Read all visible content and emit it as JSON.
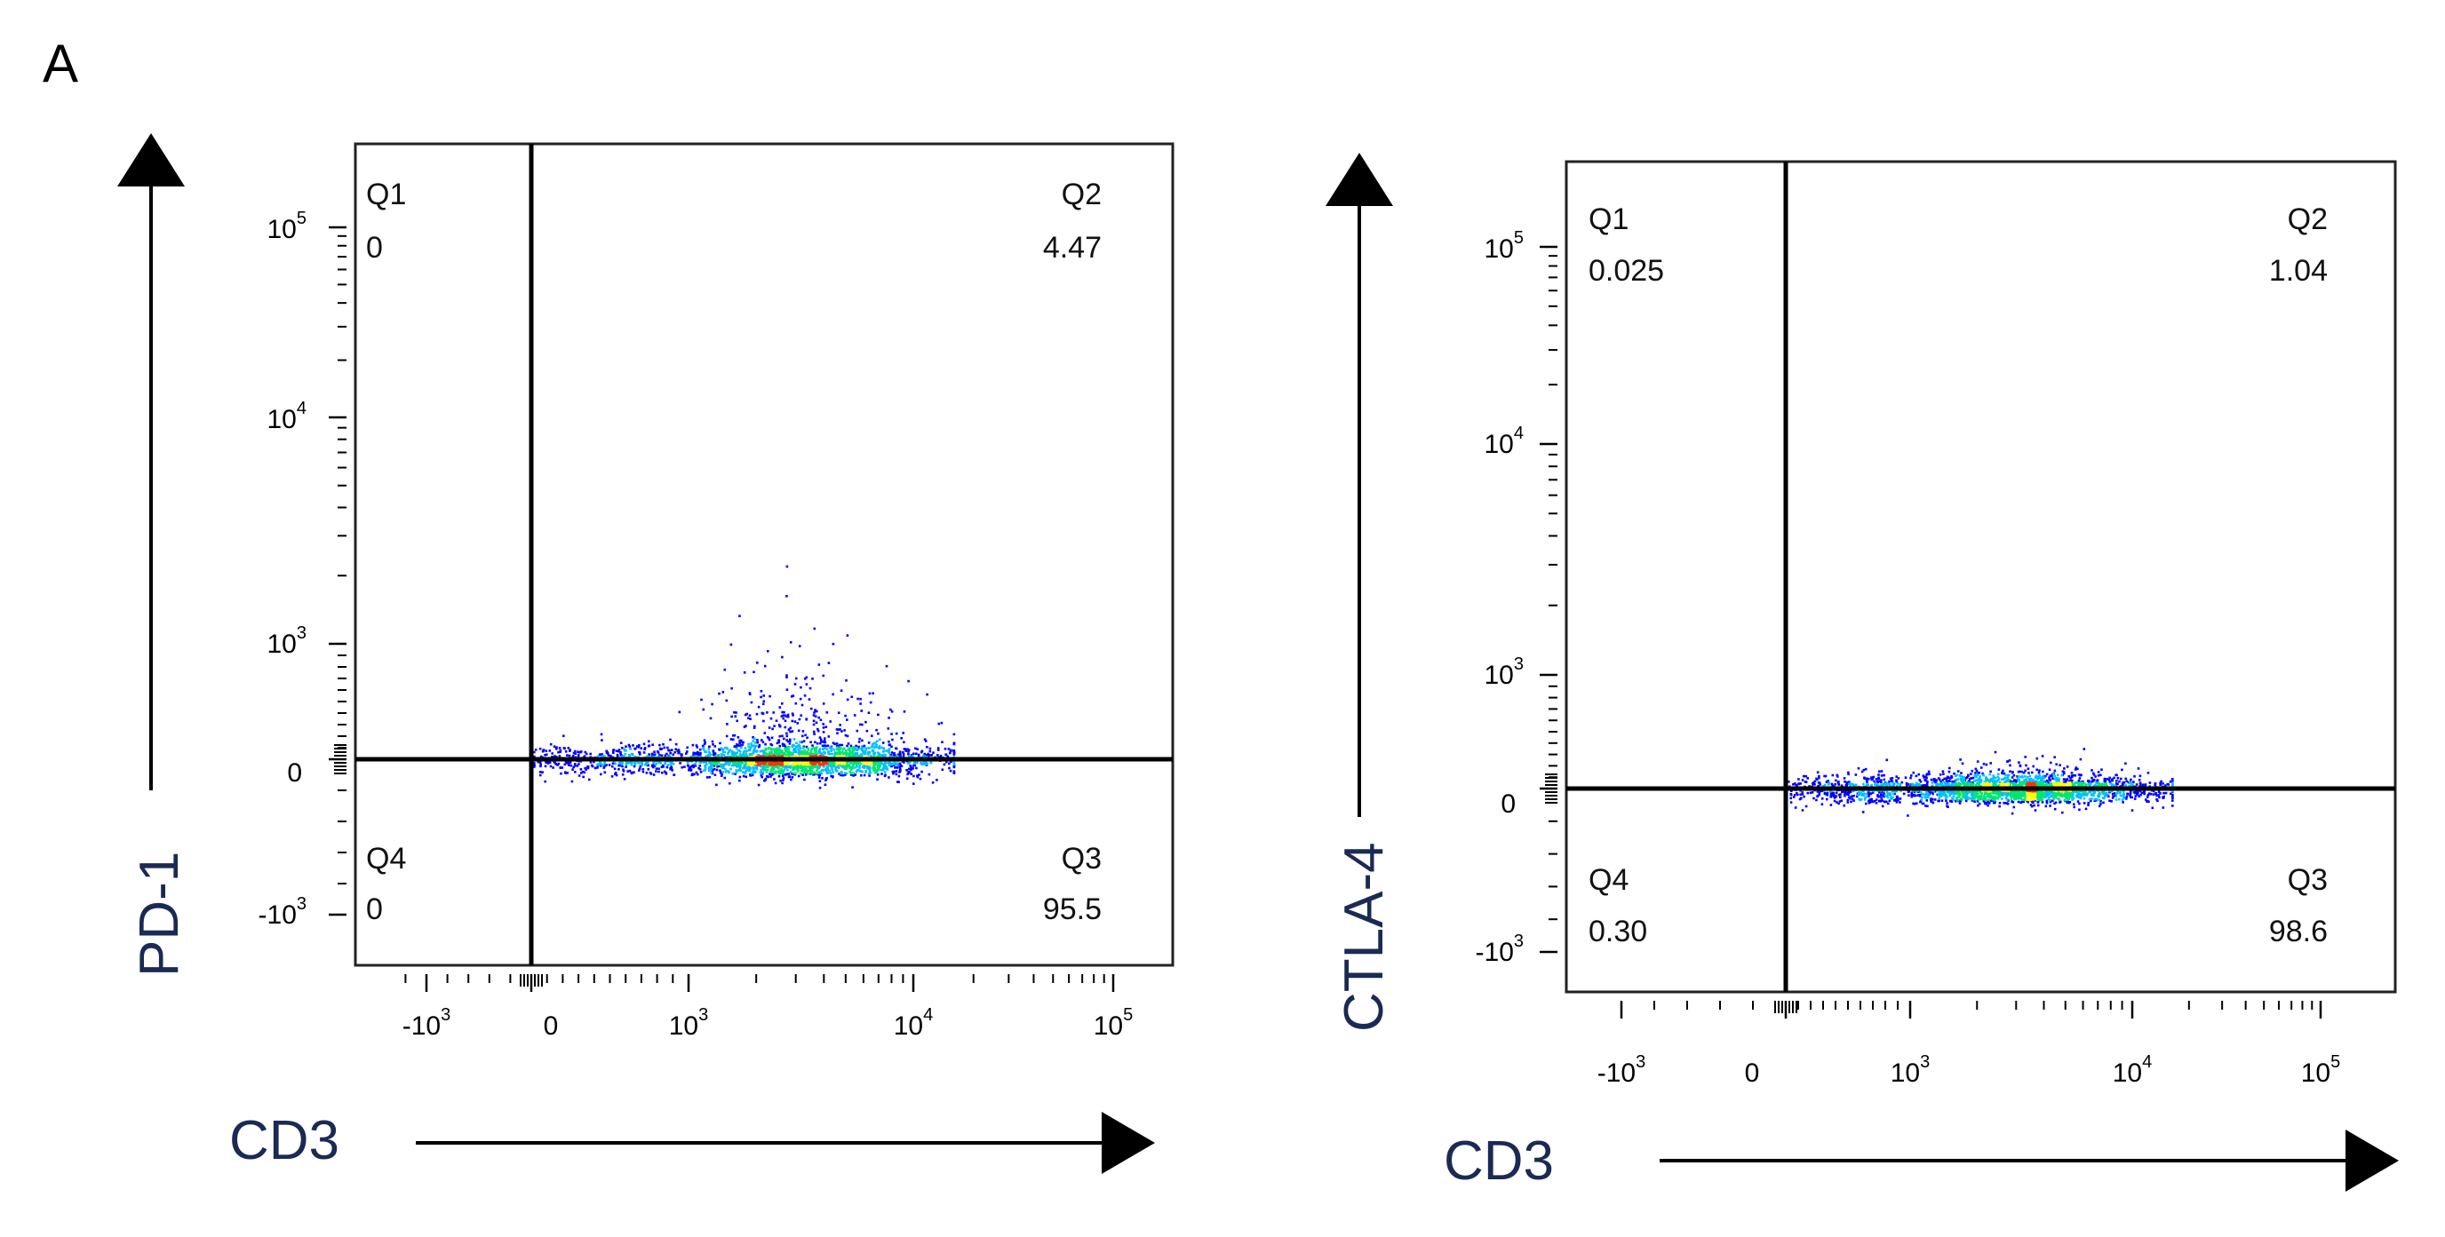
{
  "panel_letter": "A",
  "chart_data": [
    {
      "type": "scatter",
      "subtype": "flow-cytometry-density-dot-plot",
      "xlabel": "CD3",
      "ylabel": "PD-1",
      "x_scale": "biexponential",
      "y_scale": "biexponential",
      "x_ticks": [
        {
          "base": "-10",
          "exp": "3"
        },
        {
          "base": "0",
          "exp": ""
        },
        {
          "base": "10",
          "exp": "3"
        },
        {
          "base": "10",
          "exp": "4"
        },
        {
          "base": "10",
          "exp": "5"
        }
      ],
      "y_ticks": [
        {
          "base": "10",
          "exp": "5"
        },
        {
          "base": "10",
          "exp": "4"
        },
        {
          "base": "10",
          "exp": "3"
        },
        {
          "base": "0",
          "exp": ""
        },
        {
          "base": "-10",
          "exp": "3"
        }
      ],
      "quadrants": [
        {
          "name": "Q1",
          "value": "0"
        },
        {
          "name": "Q2",
          "value": "4.47"
        },
        {
          "name": "Q3",
          "value": "95.5"
        },
        {
          "name": "Q4",
          "value": "0"
        }
      ],
      "gate_x": 0,
      "gate_y": 0,
      "population": {
        "x_center": 3000,
        "y_center": 0,
        "x_range": [
          -200,
          15000
        ]
      }
    },
    {
      "type": "scatter",
      "subtype": "flow-cytometry-density-dot-plot",
      "xlabel": "CD3",
      "ylabel": "CTLA-4",
      "x_scale": "biexponential",
      "y_scale": "biexponential",
      "x_ticks": [
        {
          "base": "-10",
          "exp": "3"
        },
        {
          "base": "0",
          "exp": ""
        },
        {
          "base": "10",
          "exp": "3"
        },
        {
          "base": "10",
          "exp": "4"
        },
        {
          "base": "10",
          "exp": "5"
        }
      ],
      "y_ticks": [
        {
          "base": "10",
          "exp": "5"
        },
        {
          "base": "10",
          "exp": "4"
        },
        {
          "base": "10",
          "exp": "3"
        },
        {
          "base": "0",
          "exp": ""
        },
        {
          "base": "-10",
          "exp": "3"
        }
      ],
      "quadrants": [
        {
          "name": "Q1",
          "value": "0.025"
        },
        {
          "name": "Q2",
          "value": "1.04"
        },
        {
          "name": "Q3",
          "value": "98.6"
        },
        {
          "name": "Q4",
          "value": "0.30"
        }
      ],
      "gate_x": 0,
      "gate_y": 0,
      "population": {
        "x_center": 3000,
        "y_center": 0,
        "x_range": [
          -200,
          15000
        ]
      }
    }
  ],
  "colors": {
    "axis_title": "#1a2a55",
    "density": [
      "#0000ff",
      "#00bfff",
      "#00e676",
      "#ffff00",
      "#ff3300"
    ]
  }
}
